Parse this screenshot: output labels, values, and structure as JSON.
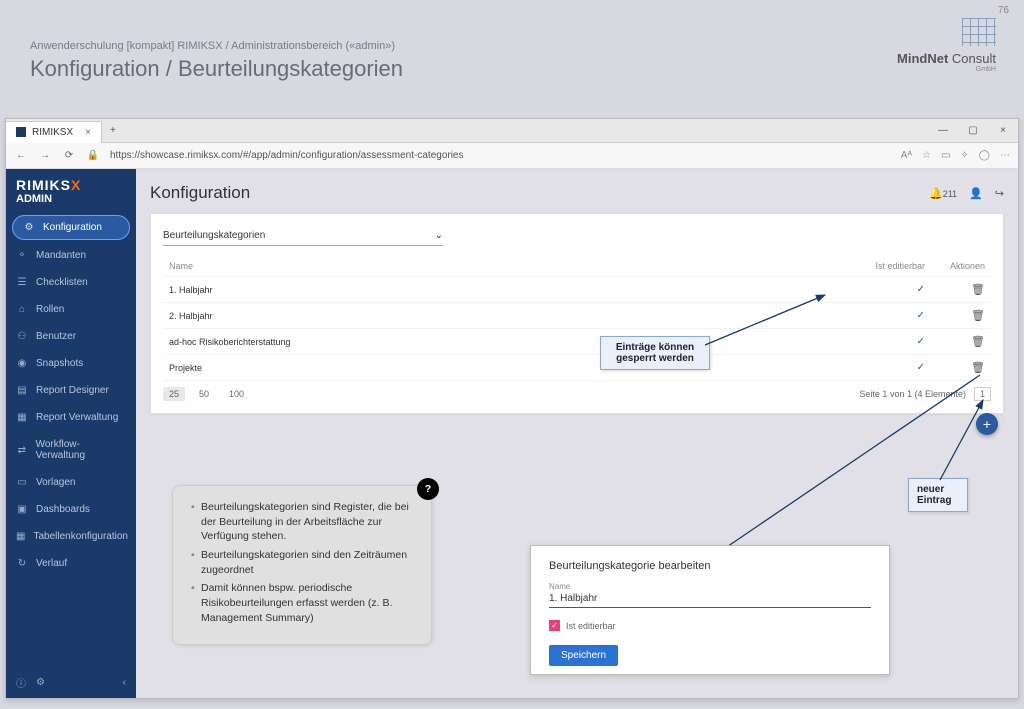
{
  "slide": {
    "page_num": "76",
    "breadcrumb": "Anwenderschulung [kompakt] RIMIKSX / Administrationsbereich («admin»)",
    "title": "Konfiguration / Beurteilungskategorien",
    "logo_name": "MindNet",
    "logo_suffix": "Consult",
    "logo_sub": "GmbH"
  },
  "browser": {
    "tab_title": "RIMIKSX",
    "url": "https://showcase.rimiksx.com/#/app/admin/configuration/assessment-categories"
  },
  "app": {
    "brand_main": "RIMIKS",
    "brand_x": "X",
    "brand_sub": "ADMIN",
    "nav": [
      {
        "icon": "⚙",
        "label": "Konfiguration",
        "active": true
      },
      {
        "icon": "⚬",
        "label": "Mandanten"
      },
      {
        "icon": "☰",
        "label": "Checklisten"
      },
      {
        "icon": "⌂",
        "label": "Rollen"
      },
      {
        "icon": "⚇",
        "label": "Benutzer"
      },
      {
        "icon": "◉",
        "label": "Snapshots"
      },
      {
        "icon": "▤",
        "label": "Report Designer"
      },
      {
        "icon": "▦",
        "label": "Report Verwaltung"
      },
      {
        "icon": "⇄",
        "label": "Workflow-Verwaltung"
      },
      {
        "icon": "▭",
        "label": "Vorlagen"
      },
      {
        "icon": "▣",
        "label": "Dashboards"
      },
      {
        "icon": "▦",
        "label": "Tabellenkonfiguration"
      },
      {
        "icon": "↻",
        "label": "Verlauf"
      }
    ],
    "main_title": "Konfiguration",
    "bell_count": "211",
    "dropdown": "Beurteilungskategorien",
    "table": {
      "col_name": "Name",
      "col_editable": "Ist editierbar",
      "col_actions": "Aktionen",
      "rows": [
        {
          "name": "1. Halbjahr",
          "editable": true
        },
        {
          "name": "2. Halbjahr",
          "editable": true
        },
        {
          "name": "ad-hoc Risikoberichterstattung",
          "editable": true
        },
        {
          "name": "Projekte",
          "editable": true
        }
      ],
      "page_sizes": [
        "25",
        "50",
        "100"
      ],
      "page_info": "Seite 1 von 1 (4 Elemente)",
      "page_current": "1"
    }
  },
  "callouts": {
    "lock": "Einträge können gesperrt werden",
    "new": "neuer Eintrag"
  },
  "info": {
    "b1": "Beurteilungskategorien sind Register, die bei der Beurteilung in der Arbeitsfläche zur Verfügung stehen.",
    "b2": "Beurteilungskategorien sind den Zeiträumen zugeordnet",
    "b3": "Damit können bspw. periodische Risikobeurteilungen erfasst werden (z. B. Management Summary)"
  },
  "edit": {
    "title": "Beurteilungskategorie bearbeiten",
    "field_label": "Name",
    "field_value": "1. Halbjahr",
    "checkbox_label": "Ist editierbar",
    "save": "Speichern"
  },
  "colors": {
    "sidebar_bg": "#1a3a6a",
    "active_bg": "#2a5aa0",
    "accent_orange": "#ff6a00",
    "fab_bg": "#2a5aa0",
    "callout_bg": "#eaf0fa",
    "callout_border": "#8aa8d0",
    "checkbox_pink": "#e8427a",
    "save_btn": "#2a72d4",
    "page_bg": "#d8d8e0"
  }
}
